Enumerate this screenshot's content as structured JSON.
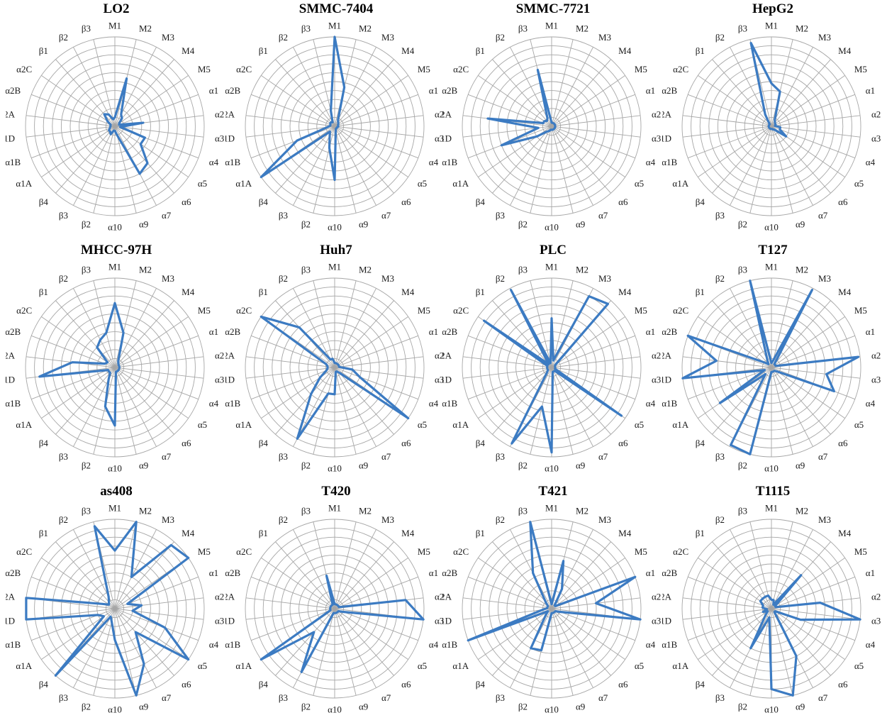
{
  "chart_data": [
    {
      "type": "radar",
      "title": "LO2",
      "rmax": 100,
      "categories": [
        "M1",
        "M2",
        "M3",
        "M4",
        "M5",
        "α1",
        "α2",
        "α3",
        "α4",
        "α5",
        "α6",
        "α7",
        "α9",
        "α10",
        "β2",
        "β3",
        "β4",
        "α1A",
        "α1B",
        "α1D",
        "α2A",
        "α2B",
        "α2C",
        "β1",
        "β2",
        "β3"
      ],
      "values": [
        10,
        55,
        15,
        12,
        6,
        5,
        32,
        6,
        36,
        35,
        55,
        60,
        10,
        5,
        5,
        10,
        8,
        8,
        6,
        5,
        5,
        5,
        10,
        18,
        15,
        8
      ]
    },
    {
      "type": "radar",
      "title": "SMMC-7404",
      "rmax": 100,
      "categories": [
        "M1",
        "M2",
        "M3",
        "M4",
        "M5",
        "α1",
        "α2",
        "α3",
        "α4",
        "α5",
        "α6",
        "α7",
        "α9",
        "α10",
        "β2",
        "β3",
        "β4",
        "α1A",
        "α1B",
        "α1D",
        "α2A",
        "α2B",
        "α2C",
        "β1",
        "β2",
        "β3"
      ],
      "values": [
        100,
        45,
        8,
        6,
        5,
        4,
        4,
        4,
        3,
        3,
        3,
        3,
        5,
        60,
        25,
        12,
        8,
        100,
        45,
        8,
        5,
        5,
        6,
        6,
        5,
        18
      ]
    },
    {
      "type": "radar",
      "title": "SMMC-7721",
      "rmax": 100,
      "categories": [
        "M1",
        "M2",
        "M3",
        "M4",
        "M5",
        "α1",
        "α2",
        "α3",
        "α4",
        "α5",
        "α6",
        "α7",
        "α9",
        "α10",
        "β2",
        "β3",
        "β4",
        "α1A",
        "α1B",
        "α1D",
        "α2A",
        "α2B",
        "α2C",
        "β1",
        "β2",
        "β3"
      ],
      "values": [
        4,
        4,
        4,
        4,
        4,
        4,
        4,
        4,
        4,
        4,
        4,
        4,
        4,
        4,
        4,
        6,
        8,
        20,
        60,
        15,
        72,
        10,
        10,
        8,
        10,
        65
      ]
    },
    {
      "type": "radar",
      "title": "HepG2",
      "rmax": 100,
      "categories": [
        "M1",
        "M2",
        "M3",
        "M4",
        "M5",
        "α1",
        "α2",
        "α3",
        "α4",
        "α5",
        "α6",
        "α7",
        "α9",
        "α10",
        "β2",
        "β3",
        "β4",
        "α1A",
        "α1B",
        "α1D",
        "α2A",
        "α2B",
        "α2C",
        "β1",
        "β2",
        "β3"
      ],
      "values": [
        48,
        40,
        8,
        6,
        5,
        5,
        4,
        10,
        10,
        20,
        5,
        4,
        3,
        3,
        3,
        3,
        3,
        3,
        3,
        3,
        3,
        3,
        3,
        3,
        15,
        96
      ]
    },
    {
      "type": "radar",
      "title": "MHCC-97H",
      "rmax": 100,
      "categories": [
        "M1",
        "M2",
        "M3",
        "M4",
        "M5",
        "α1",
        "α2",
        "α3",
        "α4",
        "α5",
        "α6",
        "α7",
        "α9",
        "α10",
        "β2",
        "β3",
        "β4",
        "α1A",
        "α1B",
        "α1D",
        "α2A",
        "α2B",
        "α2C",
        "β1",
        "β2",
        "β3"
      ],
      "values": [
        72,
        40,
        8,
        6,
        5,
        5,
        5,
        5,
        5,
        5,
        5,
        5,
        5,
        65,
        45,
        15,
        8,
        8,
        8,
        85,
        48,
        12,
        10,
        30,
        35,
        40
      ]
    },
    {
      "type": "radar",
      "title": "Huh7",
      "rmax": 100,
      "categories": [
        "M1",
        "M2",
        "M3",
        "M4",
        "M5",
        "α1",
        "α2",
        "α3",
        "α4",
        "α5",
        "α6",
        "α7",
        "α9",
        "α10",
        "β2",
        "β3",
        "β4",
        "α1A",
        "α1B",
        "α1D",
        "α2A",
        "α2B",
        "α2C",
        "β1",
        "β2",
        "β3"
      ],
      "values": [
        5,
        5,
        5,
        5,
        5,
        5,
        5,
        20,
        30,
        100,
        8,
        5,
        5,
        30,
        30,
        90,
        40,
        20,
        10,
        8,
        8,
        10,
        100,
        60,
        10,
        10
      ]
    },
    {
      "type": "radar",
      "title": "PLC",
      "rmax": 100,
      "categories": [
        "M1",
        "M2",
        "M3",
        "M4",
        "M5",
        "α1",
        "α2",
        "α3",
        "α4",
        "α5",
        "α6",
        "α7",
        "α9",
        "α10",
        "β2",
        "β3",
        "β4",
        "α1A",
        "α1B",
        "α1D",
        "α2A",
        "α2B",
        "α2C",
        "β1",
        "β2",
        "β3"
      ],
      "values": [
        55,
        8,
        90,
        95,
        5,
        4,
        4,
        4,
        4,
        95,
        5,
        5,
        5,
        95,
        45,
        96,
        8,
        5,
        5,
        5,
        5,
        5,
        92,
        5,
        98,
        5
      ]
    },
    {
      "type": "radar",
      "title": "T127",
      "rmax": 100,
      "categories": [
        "M1",
        "M2",
        "M3",
        "M4",
        "M5",
        "α1",
        "α2",
        "α3",
        "α4",
        "α5",
        "α6",
        "α7",
        "α9",
        "α10",
        "β2",
        "β3",
        "β4",
        "α1A",
        "α1B",
        "α1D",
        "α2A",
        "α2B",
        "α2C",
        "β1",
        "β2",
        "β3"
      ],
      "values": [
        5,
        8,
        98,
        5,
        5,
        5,
        98,
        62,
        75,
        8,
        5,
        5,
        5,
        5,
        100,
        98,
        10,
        70,
        8,
        100,
        62,
        100,
        10,
        5,
        10,
        100
      ]
    },
    {
      "type": "radar",
      "title": "as408",
      "rmax": 100,
      "categories": [
        "M1",
        "M2",
        "M3",
        "M4",
        "M5",
        "α1",
        "α2",
        "α3",
        "α4",
        "α5",
        "α6",
        "α7",
        "α9",
        "α10",
        "β2",
        "β3",
        "β4",
        "α1A",
        "α1B",
        "α1D",
        "α2A",
        "α2B",
        "α2C",
        "β1",
        "β2",
        "β3"
      ],
      "values": [
        65,
        100,
        40,
        95,
        100,
        15,
        30,
        20,
        60,
        100,
        35,
        70,
        100,
        35,
        15,
        10,
        100,
        15,
        20,
        100,
        100,
        15,
        8,
        10,
        15,
        95
      ]
    },
    {
      "type": "radar",
      "title": "T420",
      "rmax": 100,
      "categories": [
        "M1",
        "M2",
        "M3",
        "M4",
        "M5",
        "α1",
        "α2",
        "α3",
        "α4",
        "α5",
        "α6",
        "α7",
        "α9",
        "α10",
        "β2",
        "β3",
        "β4",
        "α1A",
        "α1B",
        "α1D",
        "α2A",
        "α2B",
        "α2C",
        "β1",
        "β2",
        "β3"
      ],
      "values": [
        5,
        5,
        5,
        5,
        5,
        5,
        80,
        100,
        10,
        5,
        5,
        5,
        5,
        5,
        5,
        80,
        35,
        100,
        5,
        5,
        5,
        5,
        5,
        5,
        5,
        38
      ]
    },
    {
      "type": "radar",
      "title": "T421",
      "rmax": 100,
      "categories": [
        "M1",
        "M2",
        "M3",
        "M4",
        "M5",
        "α1",
        "α2",
        "α3",
        "α4",
        "α5",
        "α6",
        "α7",
        "α9",
        "α10",
        "β2",
        "β3",
        "β4",
        "α1A",
        "α1B",
        "α1D",
        "α2A",
        "α2B",
        "α2C",
        "β1",
        "β2",
        "β3"
      ],
      "values": [
        5,
        55,
        25,
        5,
        5,
        100,
        50,
        100,
        10,
        5,
        5,
        5,
        5,
        5,
        48,
        50,
        10,
        5,
        100,
        10,
        5,
        5,
        5,
        10,
        45,
        100
      ]
    },
    {
      "type": "radar",
      "title": "T1115",
      "rmax": 100,
      "categories": [
        "M1",
        "M2",
        "M3",
        "M4",
        "M5",
        "α1",
        "α2",
        "α3",
        "α4",
        "α5",
        "α6",
        "α7",
        "α9",
        "α10",
        "β2",
        "β3",
        "β4",
        "α1A",
        "α1B",
        "α1D",
        "α2A",
        "α2B",
        "α2C",
        "β1",
        "β2",
        "β3"
      ],
      "values": [
        10,
        10,
        5,
        50,
        5,
        5,
        55,
        100,
        35,
        5,
        5,
        60,
        100,
        90,
        10,
        50,
        10,
        5,
        10,
        5,
        10,
        10,
        15,
        15,
        15,
        15
      ]
    }
  ]
}
